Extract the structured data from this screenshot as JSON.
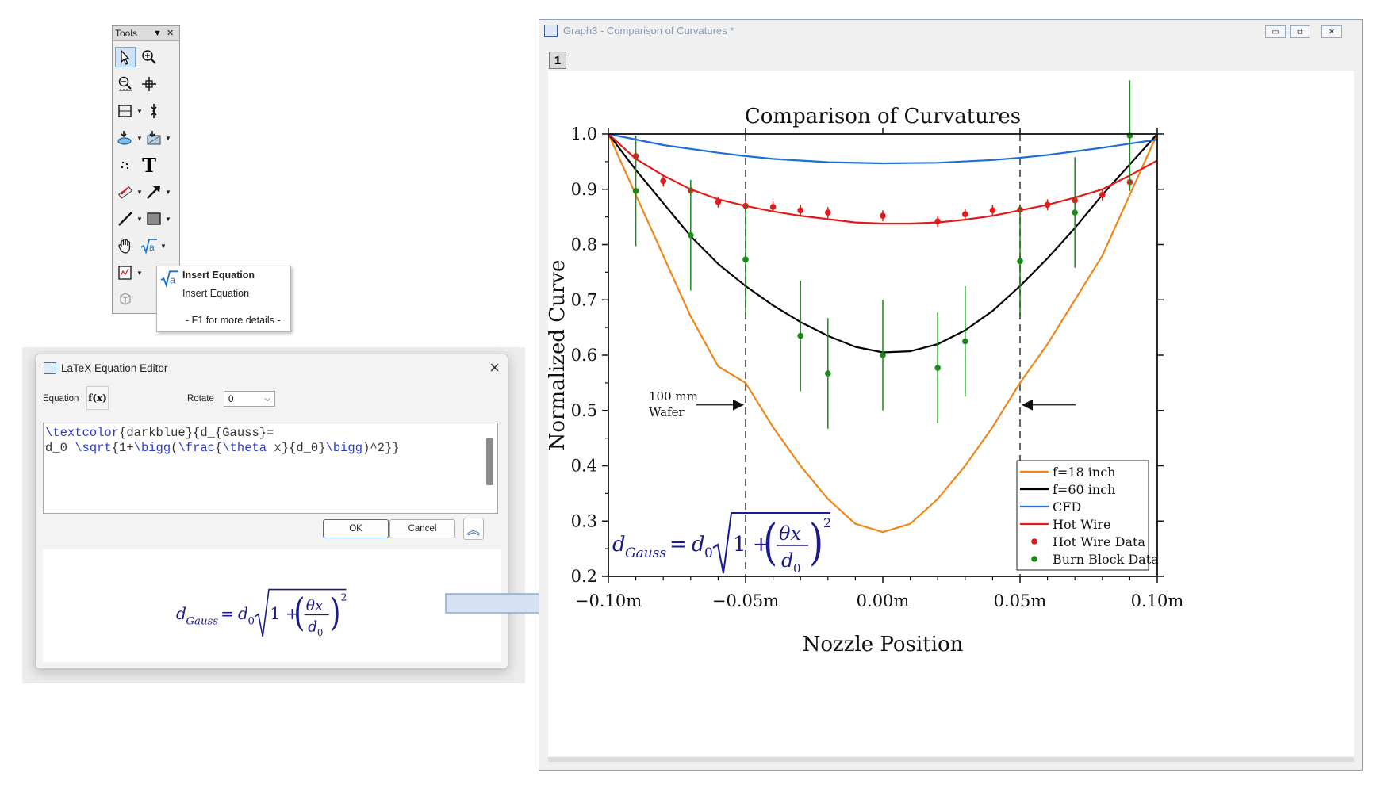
{
  "tools": {
    "title": "Tools",
    "dropdown_glyph": "▼",
    "close_glyph": "✕",
    "items": [
      {
        "name": "pointer-tool",
        "icon": "pointer-icon"
      },
      {
        "name": "zoom-in-tool",
        "icon": "zoom-in-icon"
      },
      {
        "name": "zoom-out-tool",
        "icon": "zoom-out-icon"
      },
      {
        "name": "screen-reader-tool",
        "icon": "crosshair-icon"
      },
      {
        "name": "data-selector-tool",
        "icon": "region-select-icon"
      },
      {
        "name": "mask-tool",
        "icon": "mask-points-icon"
      },
      {
        "name": "draw-data-tool",
        "icon": "draw-data-icon"
      },
      {
        "name": "remove-bad-data-tool",
        "icon": "remove-data-icon"
      },
      {
        "name": "scatter-tool",
        "icon": "scatter-dots-icon"
      },
      {
        "name": "text-tool",
        "icon": "text-T-icon",
        "glyph": "T"
      },
      {
        "name": "rectangle-edit-tool",
        "icon": "ruler-icon"
      },
      {
        "name": "arrow-tool",
        "icon": "arrow-icon"
      },
      {
        "name": "line-tool",
        "icon": "line-icon"
      },
      {
        "name": "rectangle-tool",
        "icon": "rectangle-icon"
      },
      {
        "name": "hand-tool",
        "icon": "hand-icon"
      },
      {
        "name": "insert-equation-tool",
        "icon": "sqrt-a-icon"
      },
      {
        "name": "insert-graph-tool",
        "icon": "insert-graph-icon"
      },
      {
        "name": "3d-rotation-tool",
        "icon": "3d-cube-icon"
      }
    ]
  },
  "tooltip": {
    "title": "Insert Equation",
    "description": "Insert Equation",
    "help": "- F1 for more details -"
  },
  "editor": {
    "title": "LaTeX Equation Editor",
    "equation_label": "Equation",
    "fx_label": "f(x)",
    "rotate_label": "Rotate",
    "rotate_value": "0",
    "code_line1_cmd": "\\textcolor",
    "code_line1_rest": "{darkblue}{d_{Gauss}=",
    "code_line2_a": "d_0 ",
    "code_line2_sqrt": "\\sqrt",
    "code_line2_b": "{1+",
    "code_line2_bigg1": "\\bigg",
    "code_line2_c": "(",
    "code_line2_frac": "\\frac",
    "code_line2_d": "{",
    "code_line2_theta": "\\theta",
    "code_line2_e": " x}{d_0}",
    "code_line2_bigg2": "\\bigg",
    "code_line2_f": ")^2}}",
    "ok_label": "OK",
    "cancel_label": "Cancel",
    "collapse_glyph": "︽"
  },
  "equation": {
    "d": "d",
    "sub_gauss": "Gauss",
    "equals": "=",
    "d0_main": "d",
    "d0_sub": "0",
    "one_plus": "1 +",
    "theta_x": "θx",
    "frac_den": "d",
    "frac_den_sub": "0",
    "exponent": "2",
    "color": "#1a1a8c"
  },
  "graph_window": {
    "title": "Graph3 - Comparison of Curvatures *",
    "layer_label": "1",
    "minimize_glyph": "▭",
    "restore_glyph": "⧉",
    "close_glyph": "✕"
  },
  "chart_data": {
    "type": "line",
    "title": "Comparison of Curvatures",
    "xlabel": "Nozzle Position",
    "ylabel": "Normalized Curve",
    "xlim": [
      -0.1,
      0.1
    ],
    "ylim": [
      0.2,
      1.0
    ],
    "x_ticks": [
      -0.1,
      -0.05,
      0.0,
      0.05,
      0.1
    ],
    "x_tick_labels": [
      "−0.10m",
      "−0.05m",
      "0.00m",
      "0.05m",
      "0.10m"
    ],
    "y_ticks": [
      0.2,
      0.3,
      0.4,
      0.5,
      0.6,
      0.7,
      0.8,
      0.9,
      1.0
    ],
    "y_tick_labels": [
      "0.2",
      "0.3",
      "0.4",
      "0.5",
      "0.6",
      "0.7",
      "0.8",
      "0.9",
      "1.0"
    ],
    "vlines": [
      -0.05,
      0.05
    ],
    "annotation": {
      "line1": "100 mm",
      "line2": "Wafer"
    },
    "legend_position": "bottom-right",
    "series": [
      {
        "name": "f=18 inch",
        "kind": "curve",
        "color": "#f0861a",
        "x": [
          -0.1,
          -0.09,
          -0.08,
          -0.07,
          -0.06,
          -0.05,
          -0.04,
          -0.03,
          -0.02,
          -0.01,
          0.0,
          0.01,
          0.02,
          0.03,
          0.04,
          0.05,
          0.06,
          0.07,
          0.08,
          0.09,
          0.1
        ],
        "y": [
          1.0,
          0.89,
          0.78,
          0.67,
          0.58,
          0.55,
          0.47,
          0.4,
          0.34,
          0.295,
          0.28,
          0.295,
          0.34,
          0.4,
          0.47,
          0.55,
          0.62,
          0.7,
          0.78,
          0.89,
          1.0
        ]
      },
      {
        "name": "f=60 inch",
        "kind": "curve",
        "color": "#000000",
        "x": [
          -0.1,
          -0.09,
          -0.08,
          -0.07,
          -0.06,
          -0.05,
          -0.04,
          -0.03,
          -0.02,
          -0.01,
          0.0,
          0.01,
          0.02,
          0.03,
          0.04,
          0.05,
          0.06,
          0.07,
          0.08,
          0.09,
          0.1
        ],
        "y": [
          1.0,
          0.935,
          0.875,
          0.815,
          0.765,
          0.725,
          0.69,
          0.66,
          0.635,
          0.615,
          0.605,
          0.607,
          0.62,
          0.645,
          0.68,
          0.725,
          0.775,
          0.83,
          0.89,
          0.945,
          1.0
        ]
      },
      {
        "name": "CFD",
        "kind": "curve",
        "color": "#1f6fd1",
        "x": [
          -0.1,
          -0.08,
          -0.06,
          -0.05,
          -0.04,
          -0.02,
          0.0,
          0.02,
          0.04,
          0.05,
          0.06,
          0.08,
          0.1
        ],
        "y": [
          1.0,
          0.98,
          0.966,
          0.96,
          0.955,
          0.949,
          0.947,
          0.948,
          0.953,
          0.957,
          0.962,
          0.975,
          0.99
        ]
      },
      {
        "name": "Hot Wire",
        "kind": "curve",
        "color": "#e41a1a",
        "x": [
          -0.1,
          -0.09,
          -0.08,
          -0.07,
          -0.06,
          -0.05,
          -0.04,
          -0.03,
          -0.02,
          -0.01,
          0.0,
          0.01,
          0.02,
          0.03,
          0.04,
          0.05,
          0.06,
          0.07,
          0.08,
          0.09,
          0.1
        ],
        "y": [
          1.0,
          0.955,
          0.925,
          0.9,
          0.882,
          0.87,
          0.86,
          0.852,
          0.846,
          0.84,
          0.838,
          0.838,
          0.84,
          0.845,
          0.852,
          0.862,
          0.872,
          0.885,
          0.9,
          0.925,
          0.952
        ]
      },
      {
        "name": "Hot Wire Data",
        "kind": "points",
        "color": "#e41a1a",
        "x": [
          -0.09,
          -0.08,
          -0.07,
          -0.06,
          -0.05,
          -0.04,
          -0.03,
          -0.02,
          0.0,
          0.02,
          0.03,
          0.04,
          0.05,
          0.06,
          0.07,
          0.08,
          0.09
        ],
        "y": [
          0.96,
          0.915,
          0.898,
          0.877,
          0.87,
          0.868,
          0.862,
          0.858,
          0.852,
          0.842,
          0.855,
          0.862,
          0.863,
          0.872,
          0.88,
          0.89,
          0.913
        ],
        "err": [
          0.01,
          0.01,
          0.01,
          0.01,
          0.01,
          0.01,
          0.01,
          0.01,
          0.01,
          0.01,
          0.01,
          0.01,
          0.01,
          0.01,
          0.01,
          0.01,
          0.01
        ]
      },
      {
        "name": "Burn Block Data",
        "kind": "points",
        "color": "#1a8a1a",
        "x": [
          -0.09,
          -0.07,
          -0.05,
          -0.03,
          -0.02,
          0.0,
          0.02,
          0.03,
          0.05,
          0.07,
          0.09
        ],
        "y": [
          0.897,
          0.817,
          0.773,
          0.635,
          0.567,
          0.6,
          0.577,
          0.625,
          0.77,
          0.858,
          0.997
        ],
        "err": [
          0.1,
          0.1,
          0.1,
          0.1,
          0.1,
          0.1,
          0.1,
          0.1,
          0.1,
          0.1,
          0.1
        ]
      }
    ]
  }
}
